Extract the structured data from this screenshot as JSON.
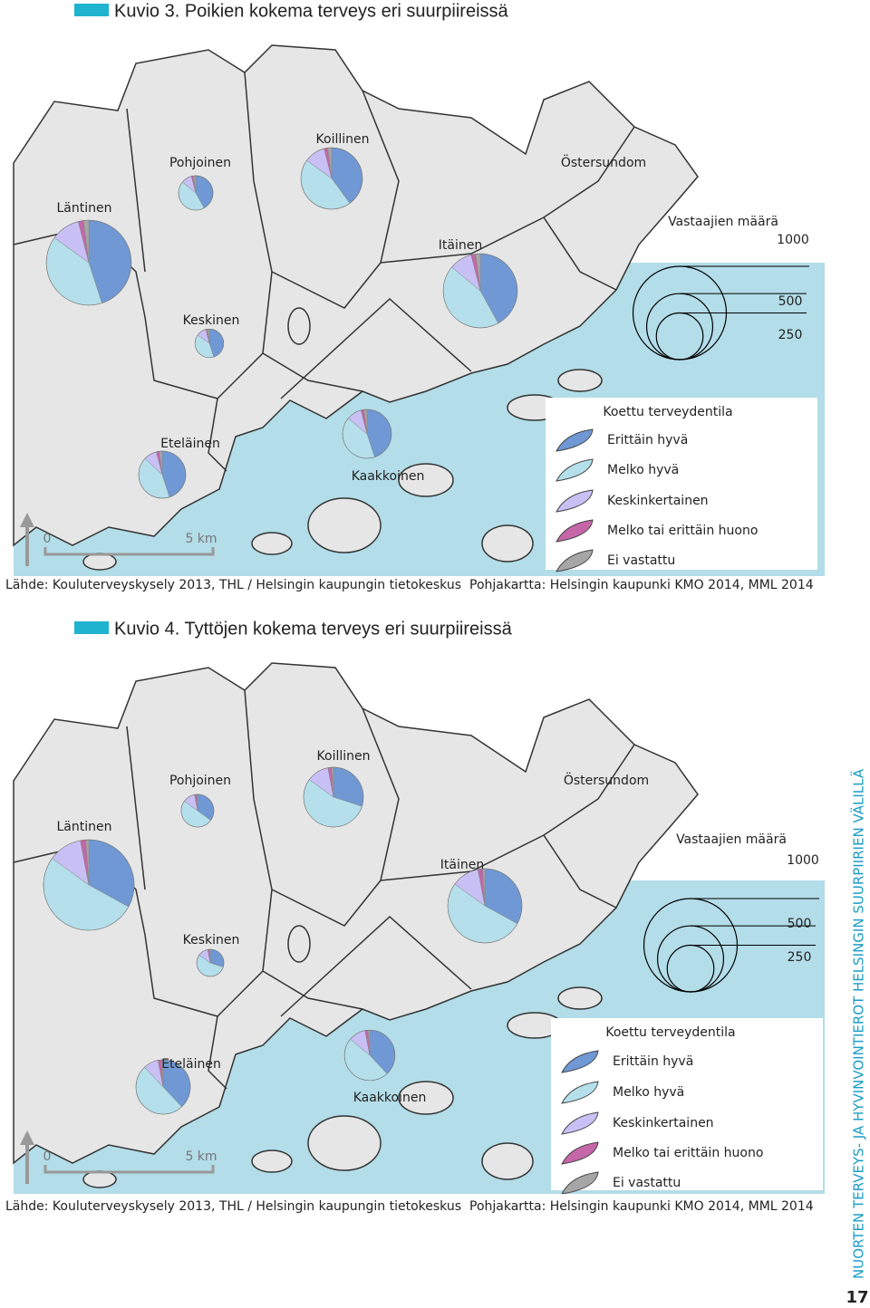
{
  "figures": [
    {
      "title": "Kuvio 3. Poikien kokema terveys eri suurpiireissä",
      "districts": [
        {
          "name": "Läntinen",
          "n": 880,
          "values": [
            45,
            40,
            11,
            2,
            2
          ]
        },
        {
          "name": "Pohjoinen",
          "n": 145,
          "values": [
            42,
            44,
            10,
            2,
            2
          ]
        },
        {
          "name": "Koillinen",
          "n": 460,
          "values": [
            40,
            45,
            11,
            2,
            2
          ]
        },
        {
          "name": "Itäinen",
          "n": 670,
          "values": [
            42,
            44,
            10,
            2,
            2
          ]
        },
        {
          "name": "Keskinen",
          "n": 100,
          "values": [
            45,
            40,
            11,
            2,
            2
          ]
        },
        {
          "name": "Eteläinen",
          "n": 270,
          "values": [
            45,
            42,
            9,
            2,
            2
          ]
        },
        {
          "name": "Kaakkoinen",
          "n": 290,
          "values": [
            45,
            41,
            10,
            2,
            2
          ]
        }
      ],
      "place": "Östersundom",
      "size_legend": {
        "title": "Vastaajien määrä",
        "values": [
          1000,
          500,
          250
        ]
      },
      "legend": {
        "title": "Koettu terveydentila",
        "categories": [
          "Erittäin hyvä",
          "Melko hyvä",
          "Keskinkertainen",
          "Melko tai erittäin huono",
          "Ei vastattu"
        ],
        "colors": [
          "#6f98d4",
          "#b4dfeb",
          "#c8c0f5",
          "#c466a8",
          "#a6a6a6"
        ]
      },
      "scale": [
        "0",
        "5 km"
      ],
      "source": "Lähde: Kouluterveyskysely 2013, THL / Helsingin kaupungin tietokeskus",
      "basemap": "Pohjakartta: Helsingin kaupunki KMO 2014, MML 2014"
    },
    {
      "title": "Kuvio 4. Tyttöjen kokema terveys eri suurpiireissä",
      "districts": [
        {
          "name": "Läntinen",
          "n": 1000,
          "values": [
            33,
            52,
            12,
            2,
            1
          ]
        },
        {
          "name": "Pohjoinen",
          "n": 130,
          "values": [
            35,
            50,
            12,
            2,
            1
          ]
        },
        {
          "name": "Koillinen",
          "n": 435,
          "values": [
            30,
            55,
            12,
            2,
            1
          ]
        },
        {
          "name": "Itäinen",
          "n": 670,
          "values": [
            33,
            52,
            12,
            2,
            1
          ]
        },
        {
          "name": "Keskinen",
          "n": 90,
          "values": [
            30,
            55,
            12,
            2,
            1
          ]
        },
        {
          "name": "Eteläinen",
          "n": 360,
          "values": [
            38,
            50,
            9,
            2,
            1
          ]
        },
        {
          "name": "Kaakkoinen",
          "n": 310,
          "values": [
            38,
            48,
            11,
            2,
            1
          ]
        }
      ],
      "place": "Östersundom",
      "size_legend": {
        "title": "Vastaajien määrä",
        "values": [
          1000,
          500,
          250
        ]
      },
      "legend": {
        "title": "Koettu terveydentila",
        "categories": [
          "Erittäin hyvä",
          "Melko hyvä",
          "Keskinkertainen",
          "Melko tai erittäin huono",
          "Ei vastattu"
        ],
        "colors": [
          "#6f98d4",
          "#b4dfeb",
          "#c8c0f5",
          "#c466a8",
          "#a6a6a6"
        ]
      },
      "scale": [
        "0",
        "5 km"
      ],
      "source": "Lähde: Kouluterveyskysely 2013, THL / Helsingin kaupungin tietokeskus",
      "basemap": "Pohjakartta: Helsingin kaupunki KMO 2014, MML 2014"
    }
  ],
  "sidebar": "NUORTEN TERVEYS- JA HYVINVOINTIEROT HELSINGIN SUURPIIRIEN VÄLILLÄ",
  "page_number": "17"
}
